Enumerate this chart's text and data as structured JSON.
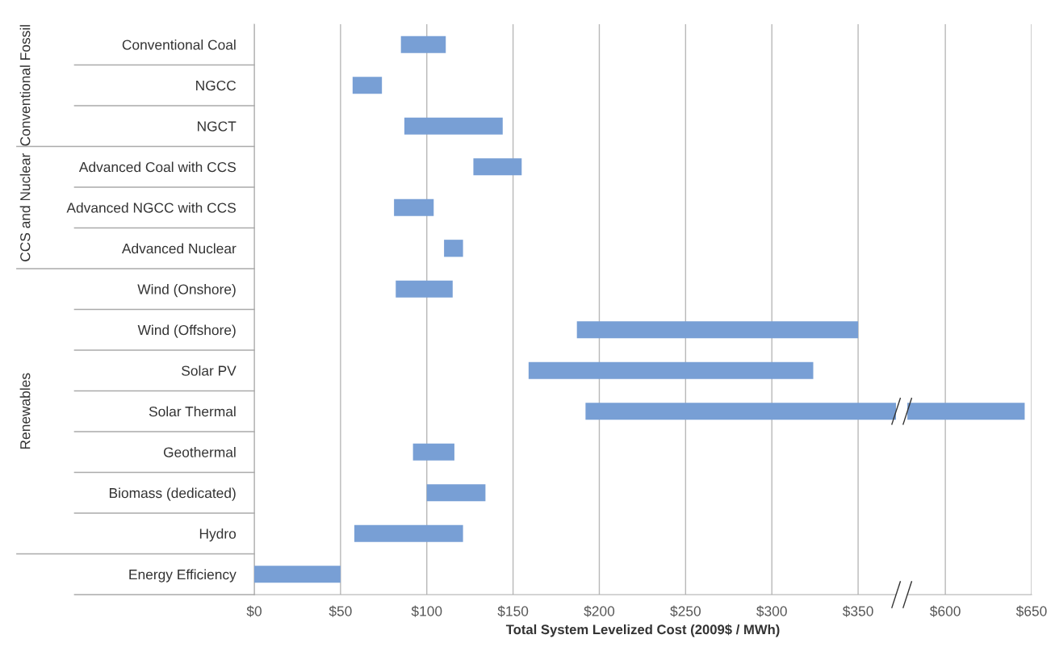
{
  "chart_data": [
    {
      "type": "bar",
      "orientation": "horizontal",
      "xlabel": "Total System Levelized Cost (2009$ / MWh)",
      "categories": [
        "Conventional Coal",
        "NGCC",
        "NGCT",
        "Advanced Coal with CCS",
        "Advanced NGCC with CCS",
        "Advanced Nuclear",
        "Wind (Onshore)",
        "Wind (Offshore)",
        "Solar PV",
        "Solar Thermal",
        "Geothermal",
        "Biomass (dedicated)",
        "Hydro",
        "Energy Efficiency"
      ],
      "base": [
        85,
        57,
        87,
        127,
        81,
        110,
        82,
        187,
        159,
        192,
        92,
        100,
        58,
        0
      ],
      "values": [
        26,
        17,
        57,
        28,
        23,
        11,
        33,
        163,
        165,
        180,
        24,
        34,
        63,
        50
      ],
      "color": "#789fd5",
      "xlim": [
        0,
        372
      ],
      "xticks": [
        {
          "value": 0,
          "label": "$0"
        },
        {
          "value": 50,
          "label": "$50"
        },
        {
          "value": 100,
          "label": "$100"
        },
        {
          "value": 150,
          "label": "$150"
        },
        {
          "value": 200,
          "label": "$200"
        },
        {
          "value": 250,
          "label": "$250"
        },
        {
          "value": 300,
          "label": "$300"
        },
        {
          "value": 350,
          "label": "$350"
        }
      ],
      "grid": "x",
      "annotations": [
        "Conventional Fossil",
        "CCS and Nuclear",
        "Renewables"
      ]
    },
    {
      "type": "bar",
      "orientation": "horizontal",
      "categories": [
        null,
        null,
        null,
        null,
        null,
        null,
        null,
        null,
        null,
        null,
        null,
        null,
        null,
        null
      ],
      "base": [
        null,
        null,
        null,
        null,
        null,
        null,
        null,
        null,
        null,
        578,
        null,
        null,
        null,
        null
      ],
      "values": [
        null,
        null,
        null,
        null,
        null,
        null,
        null,
        null,
        null,
        68,
        null,
        null,
        null,
        null
      ],
      "color": "#789fd5",
      "xlim": [
        578,
        650
      ],
      "xticks": [
        {
          "value": 600,
          "label": "$600"
        },
        {
          "value": 650,
          "label": "$650"
        }
      ],
      "grid": "x",
      "tick_labels": "x"
    }
  ]
}
